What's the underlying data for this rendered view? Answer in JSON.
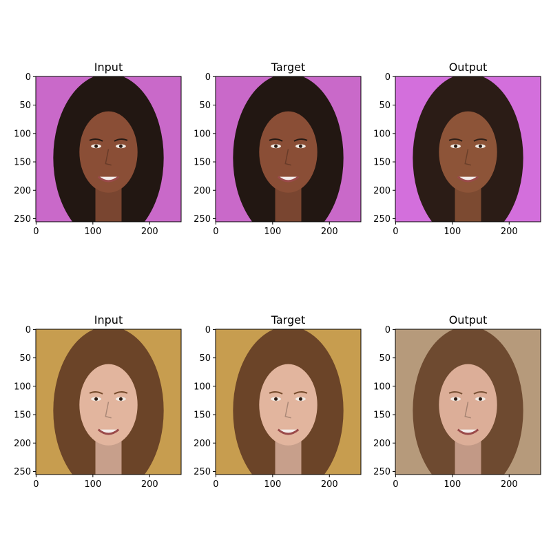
{
  "figure": {
    "background": "#ffffff",
    "axes_color": "#000000",
    "tick_labels": [
      "0",
      "50",
      "100",
      "150",
      "200",
      "250"
    ],
    "x_tick_labels": [
      "0",
      "100",
      "200"
    ],
    "image_extent": [
      0,
      256
    ]
  },
  "panels": [
    {
      "row": 0,
      "col": 0,
      "title": "Input",
      "image": "face-photo-woman-dark-hair-pink-backdrop",
      "bg_color": "#c969c9",
      "hair_color": "#221712",
      "skin_color": "#8a4e36"
    },
    {
      "row": 0,
      "col": 1,
      "title": "Target",
      "image": "face-photo-woman-dark-hair-pink-backdrop",
      "bg_color": "#c969c9",
      "hair_color": "#221712",
      "skin_color": "#8a4e36"
    },
    {
      "row": 0,
      "col": 2,
      "title": "Output",
      "image": "face-generated-woman-dark-hair-pink-backdrop",
      "bg_color": "#d36fdc",
      "hair_color": "#2b1c16",
      "skin_color": "#8d5438"
    },
    {
      "row": 1,
      "col": 0,
      "title": "Input",
      "image": "face-photo-woman-brown-hair-yellow-backdrop",
      "bg_color": "#c79d4f",
      "hair_color": "#6b4428",
      "skin_color": "#e2b59e"
    },
    {
      "row": 1,
      "col": 1,
      "title": "Target",
      "image": "face-photo-woman-brown-hair-yellow-backdrop",
      "bg_color": "#c79d4f",
      "hair_color": "#6b4428",
      "skin_color": "#e2b59e"
    },
    {
      "row": 1,
      "col": 2,
      "title": "Output",
      "image": "face-generated-woman-brown-hair-tan-backdrop",
      "bg_color": "#b69a7b",
      "hair_color": "#6e4a30",
      "skin_color": "#dcae98"
    }
  ]
}
